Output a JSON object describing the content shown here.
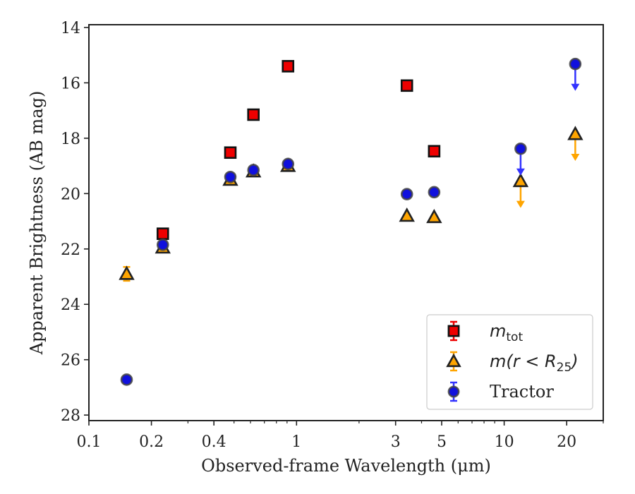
{
  "chart_data": {
    "type": "scatter",
    "xlabel": "Observed-frame Wavelength (μm)",
    "ylabel": "Apparent Brightness (AB mag)",
    "xscale": "log",
    "xlim": [
      0.1,
      30
    ],
    "ylim": [
      28.2,
      13.9
    ],
    "y_inverted": true,
    "grid": false,
    "legend_position": "lower-right",
    "x_ticks": [
      {
        "value": 0.1,
        "label": "0.1"
      },
      {
        "value": 0.2,
        "label": "0.2"
      },
      {
        "value": 0.4,
        "label": "0.4"
      },
      {
        "value": 1,
        "label": "1"
      },
      {
        "value": 3,
        "label": "3"
      },
      {
        "value": 5,
        "label": "5"
      },
      {
        "value": 10,
        "label": "10"
      },
      {
        "value": 20,
        "label": "20"
      }
    ],
    "y_ticks": [
      {
        "value": 14,
        "label": "14"
      },
      {
        "value": 16,
        "label": "16"
      },
      {
        "value": 18,
        "label": "18"
      },
      {
        "value": 20,
        "label": "20"
      },
      {
        "value": 22,
        "label": "22"
      },
      {
        "value": 24,
        "label": "24"
      },
      {
        "value": 26,
        "label": "26"
      },
      {
        "value": 28,
        "label": "28"
      }
    ],
    "series": [
      {
        "name": "m_tot",
        "legend_main": "m",
        "legend_sub": "tot",
        "marker": "square",
        "fill_color": "#ee0000",
        "errorbar_color": "#ee0000",
        "points": [
          {
            "x": 0.227,
            "y": 21.45
          },
          {
            "x": 0.48,
            "y": 18.52
          },
          {
            "x": 0.62,
            "y": 17.15
          },
          {
            "x": 0.91,
            "y": 15.4
          },
          {
            "x": 3.4,
            "y": 16.1
          },
          {
            "x": 4.6,
            "y": 18.47
          }
        ]
      },
      {
        "name": "m(r < R25)",
        "legend_main": "m(r < R",
        "legend_sub": "25",
        "legend_end": ")",
        "marker": "triangle",
        "fill_color": "#ffa500",
        "errorbar_color": "#ffa500",
        "points": [
          {
            "x": 0.152,
            "y": 22.9,
            "yerr": 0.25
          },
          {
            "x": 0.227,
            "y": 21.95
          },
          {
            "x": 0.48,
            "y": 19.5
          },
          {
            "x": 0.62,
            "y": 19.2
          },
          {
            "x": 0.91,
            "y": 19.0
          },
          {
            "x": 3.4,
            "y": 20.8
          },
          {
            "x": 4.6,
            "y": 20.85
          },
          {
            "x": 12.0,
            "y": 19.55,
            "upper_limit": true
          },
          {
            "x": 22.0,
            "y": 17.85,
            "upper_limit": true
          }
        ]
      },
      {
        "name": "Tractor",
        "legend_main": "Tractor",
        "marker": "circle",
        "fill_color": "#1010dd",
        "errorbar_color": "#3333ff",
        "points": [
          {
            "x": 0.152,
            "y": 26.72
          },
          {
            "x": 0.227,
            "y": 21.85
          },
          {
            "x": 0.48,
            "y": 19.4
          },
          {
            "x": 0.62,
            "y": 19.15
          },
          {
            "x": 0.91,
            "y": 18.93
          },
          {
            "x": 3.4,
            "y": 20.02
          },
          {
            "x": 4.6,
            "y": 19.95
          },
          {
            "x": 12.0,
            "y": 18.38,
            "upper_limit": true
          },
          {
            "x": 22.0,
            "y": 15.32,
            "upper_limit": true
          }
        ]
      }
    ]
  }
}
